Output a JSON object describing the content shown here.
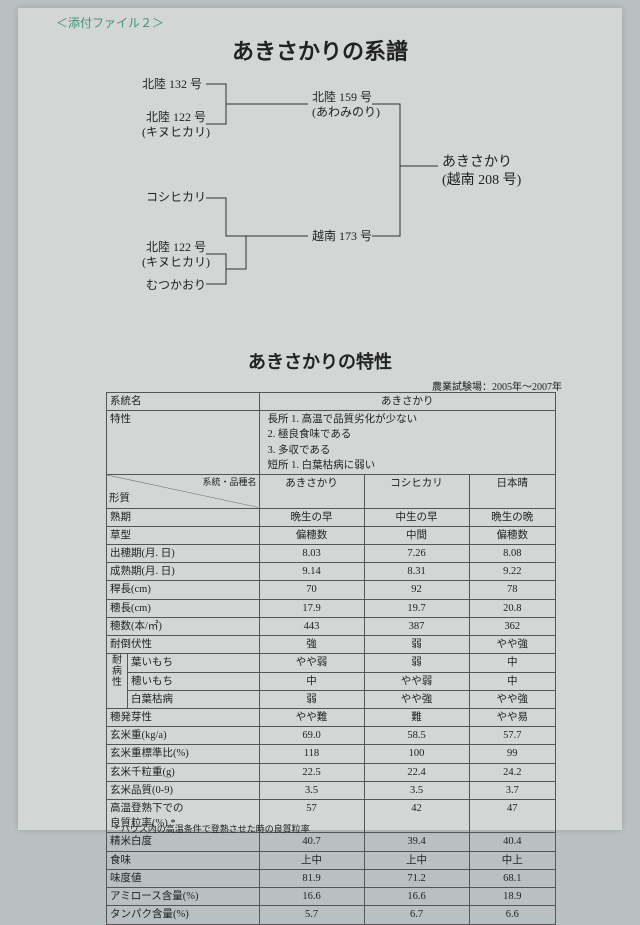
{
  "attachment_label": "＜添付ファイル２＞",
  "pedigree_title": "あきさかりの系譜",
  "tree": {
    "n1": "北陸 132 号",
    "n2": "北陸 122 号\n(キヌヒカリ)",
    "n3": "コシヒカリ",
    "n4": "北陸 122 号\n(キヌヒカリ)",
    "n5": "むつかおり",
    "m1": "北陸 159 号\n(あわみのり)",
    "m2": "越南 173 号",
    "final": "あきさかり\n(越南 208 号)",
    "line_color": "#333333"
  },
  "char_title": "あきさかりの特性",
  "source": "農業試験場：2005年～2007年",
  "table": {
    "name_header": "系統名",
    "name_value": "あきさかり",
    "char_header": "特性",
    "characteristics": "長所  1. 高温で品質劣化が少ない\n        2. 極良食味である\n        3. 多収である\n短所  1. 白葉枯病に弱い",
    "qual_header": "形質",
    "var_header": "系統・品種名",
    "cols": [
      "あきさかり",
      "コシヒカリ",
      "日本晴"
    ],
    "rows": [
      {
        "label": "熟期",
        "v": [
          "晩生の早",
          "中生の早",
          "晩生の晩"
        ]
      },
      {
        "label": "草型",
        "v": [
          "偏穂数",
          "中間",
          "偏穂数"
        ]
      },
      {
        "label": "出穂期(月. 日)",
        "v": [
          "8.03",
          "7.26",
          "8.08"
        ]
      },
      {
        "label": "成熟期(月. 日)",
        "v": [
          "9.14",
          "8.31",
          "9.22"
        ]
      },
      {
        "label": "稈長(cm)",
        "v": [
          "70",
          "92",
          "78"
        ]
      },
      {
        "label": "穂長(cm)",
        "v": [
          "17.9",
          "19.7",
          "20.8"
        ]
      },
      {
        "label": "穂数(本/㎡)",
        "v": [
          "443",
          "387",
          "362"
        ]
      },
      {
        "label": "耐倒伏性",
        "v": [
          "強",
          "弱",
          "やや強"
        ]
      }
    ],
    "disease_header": "耐病性",
    "disease": [
      {
        "label": "葉いもち",
        "v": [
          "やや弱",
          "弱",
          "中"
        ]
      },
      {
        "label": "穂いもち",
        "v": [
          "中",
          "やや弱",
          "中"
        ]
      },
      {
        "label": "白葉枯病",
        "v": [
          "弱",
          "やや強",
          "やや強"
        ]
      }
    ],
    "rows2": [
      {
        "label": "穂発芽性",
        "v": [
          "やや難",
          "難",
          "やや易"
        ]
      },
      {
        "label": "玄米重(kg/a)",
        "v": [
          "69.0",
          "58.5",
          "57.7"
        ]
      },
      {
        "label": "玄米重標準比(%)",
        "v": [
          "118",
          "100",
          "99"
        ]
      },
      {
        "label": "玄米千粒重(g)",
        "v": [
          "22.5",
          "22.4",
          "24.2"
        ]
      },
      {
        "label": "玄米品質(0-9)",
        "v": [
          "3.5",
          "3.5",
          "3.7"
        ]
      },
      {
        "label": "高温登熟下での\n良質粒率(%) *",
        "v": [
          "57",
          "42",
          "47"
        ]
      },
      {
        "label": "精米白度",
        "v": [
          "40.7",
          "39.4",
          "40.4"
        ]
      },
      {
        "label": "食味",
        "v": [
          "上中",
          "上中",
          "中上"
        ]
      },
      {
        "label": "味度値",
        "v": [
          "81.9",
          "71.2",
          "68.1"
        ]
      },
      {
        "label": "アミロース含量(%)",
        "v": [
          "16.6",
          "16.6",
          "18.9"
        ]
      },
      {
        "label": "タンパク含量(%)",
        "v": [
          "5.7",
          "6.7",
          "6.6"
        ]
      }
    ]
  },
  "footnote": "*  ハウス内の高温条件で登熟させた時の良質粒率"
}
